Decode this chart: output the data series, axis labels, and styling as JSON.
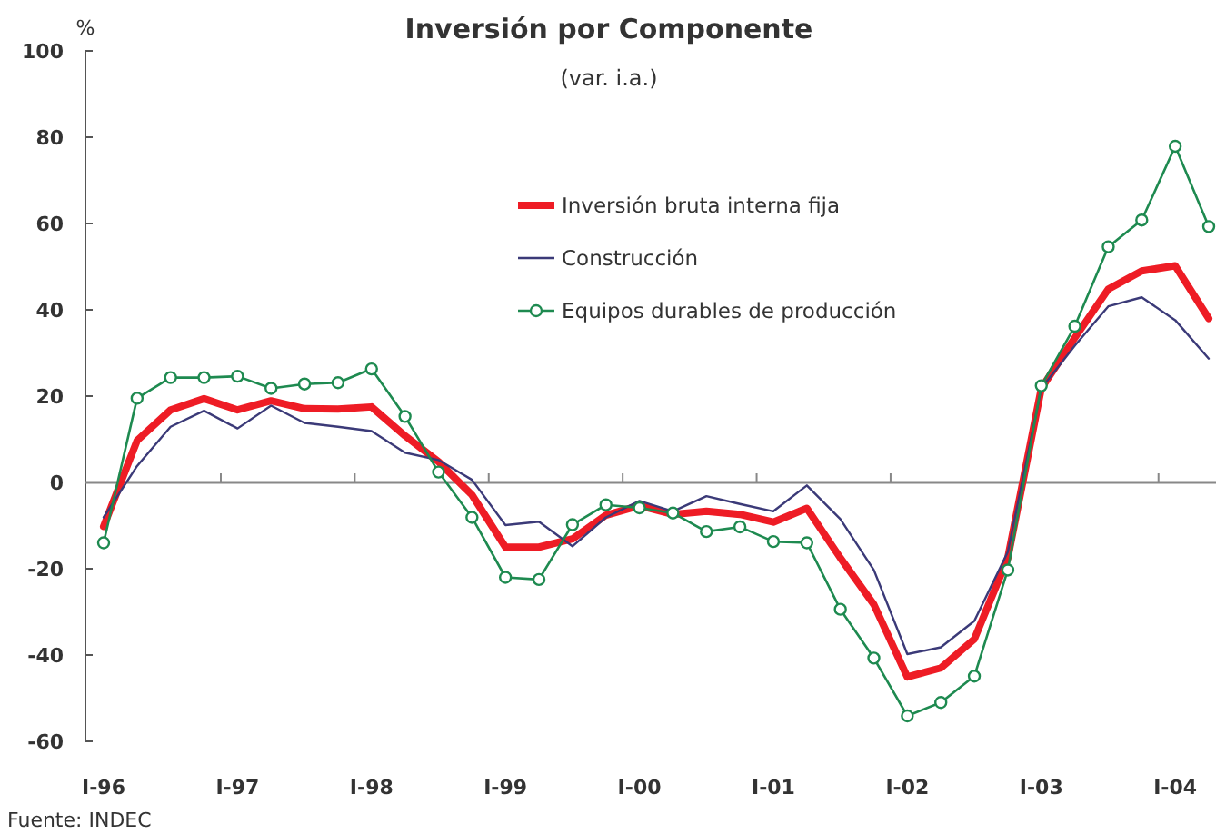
{
  "chart_data": {
    "type": "line",
    "title": "Inversión por Componente",
    "subtitle": "(var. i.a.)",
    "ylabel": "%",
    "categories": [
      "I-96",
      null,
      null,
      null,
      "I-97",
      null,
      null,
      null,
      "I-98",
      null,
      null,
      null,
      "I-99",
      null,
      null,
      null,
      "I-00",
      null,
      null,
      null,
      "I-01",
      null,
      null,
      null,
      "I-02",
      null,
      null,
      null,
      "I-03",
      null,
      null,
      null,
      "I-04",
      null
    ],
    "series": [
      {
        "name": "Inversión bruta interna fija",
        "color": "#ee1c25",
        "marker": "none",
        "values": [
          -10.2,
          9.7,
          16.8,
          19.4,
          16.8,
          18.9,
          17.1,
          17,
          17.5,
          10.8,
          4.8,
          -2.9,
          -15,
          -15,
          -13.1,
          -7.6,
          -5.4,
          -7.4,
          -6.7,
          -7.4,
          -9.2,
          -6,
          -17.5,
          -28.3,
          -45.1,
          -43,
          -36.3,
          -17.5,
          21.8,
          33.5,
          44.8,
          49,
          50.2,
          38
        ]
      },
      {
        "name": "Construcción",
        "color": "#3b3a78",
        "marker": "none",
        "values": [
          -8.1,
          3.8,
          12.9,
          16.6,
          12.5,
          17.8,
          13.8,
          12.9,
          11.9,
          6.9,
          5.2,
          0.6,
          -9.9,
          -9.1,
          -14.8,
          -8.1,
          -4.3,
          -6.7,
          -3.2,
          -5,
          -6.7,
          -0.7,
          -8.5,
          -20.3,
          -39.8,
          -38.2,
          -32.1,
          -16.1,
          21.8,
          31.7,
          40.8,
          42.9,
          37.6,
          28.7
        ]
      },
      {
        "name": "Equipos durables de producción",
        "color": "#1e8a50",
        "marker": "circle",
        "values": [
          -14,
          19.5,
          24.3,
          24.3,
          24.6,
          21.8,
          22.8,
          23.1,
          26.3,
          15.3,
          2.4,
          -8.1,
          -22,
          -22.5,
          -9.8,
          -5.2,
          -5.9,
          -7.1,
          -11.4,
          -10.3,
          -13.7,
          -14,
          -29.4,
          -40.7,
          -54.1,
          -51,
          -44.9,
          -20.3,
          22.4,
          36.2,
          54.6,
          60.8,
          77.9,
          59.3
        ]
      }
    ],
    "ylim": [
      -60,
      100
    ],
    "yticks": [
      -60,
      -40,
      -20,
      0,
      20,
      40,
      60,
      80,
      100
    ],
    "legend": "top",
    "annotations": [
      "Fuente: INDEC"
    ]
  }
}
